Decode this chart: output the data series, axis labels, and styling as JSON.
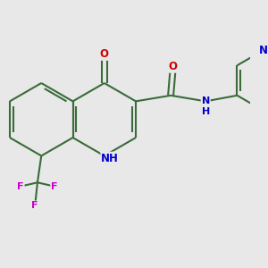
{
  "bg": "#e8e8e8",
  "bond_color": "#3a6b3a",
  "bond_lw": 1.5,
  "dbl_sep": 0.055,
  "atom_colors": {
    "O": "#cc0000",
    "N": "#0000cc",
    "F": "#cc00cc",
    "C": "#3a6b3a"
  },
  "fs": 8.5
}
